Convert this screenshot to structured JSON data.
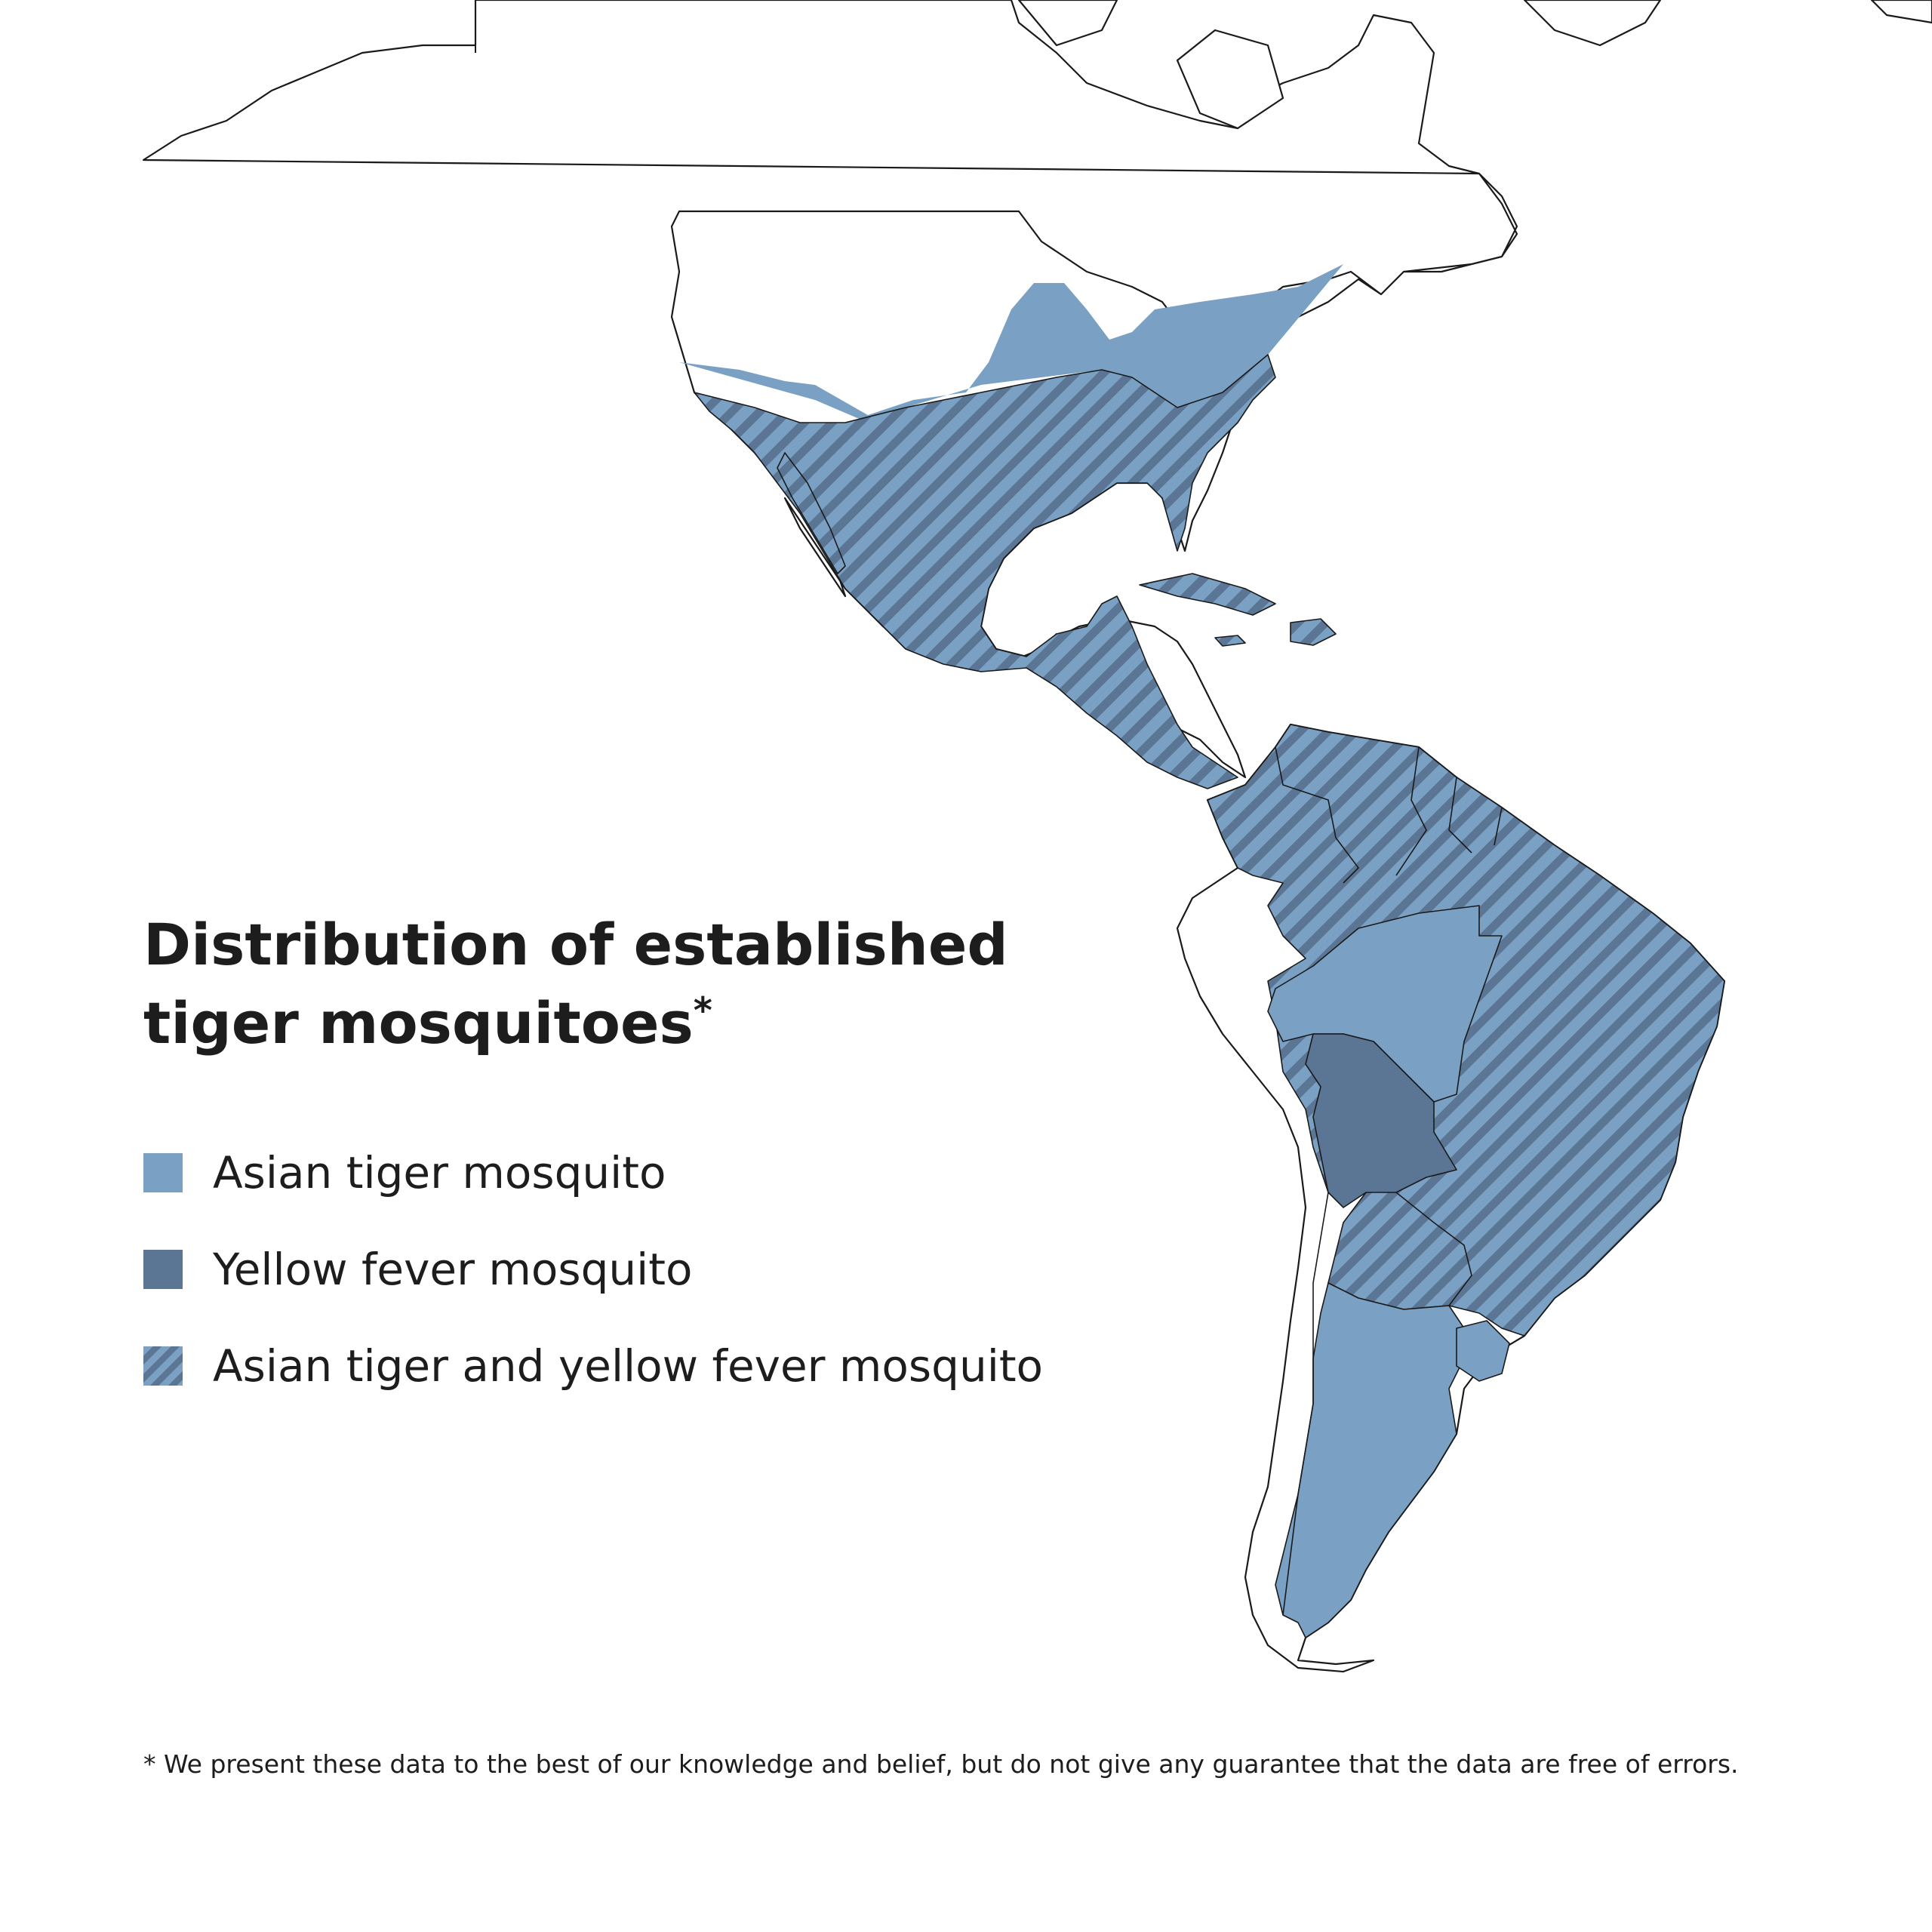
{
  "title_line1": "Distribution of established",
  "title_line2": "tiger mosquitoes",
  "title_mark": "*",
  "legend": [
    {
      "label": "Asian tiger mosquito",
      "color": "#7aa1c4"
    },
    {
      "label": "Yellow fever mosquito",
      "color": "#5b7594"
    },
    {
      "label": "Asian tiger and yellow fever mosquito",
      "pattern": "hatched"
    }
  ],
  "footnote": "* We present these data to the best of our knowledge and belief, but do not give any guarantee that the data are free of errors."
}
